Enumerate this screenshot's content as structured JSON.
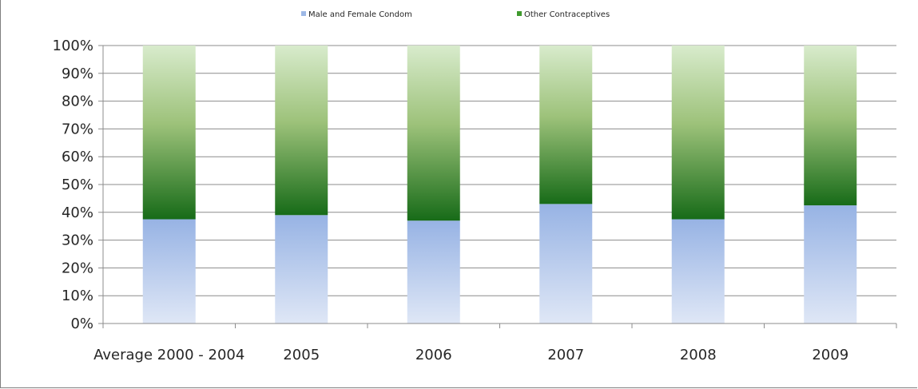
{
  "chart_data": {
    "type": "bar",
    "stacked": true,
    "percent_stacked": true,
    "categories": [
      "Average 2000 - 2004",
      "2005",
      "2006",
      "2007",
      "2008",
      "2009"
    ],
    "series": [
      {
        "name": "Male and Female Condom",
        "color": "#9db8e6",
        "values": [
          37.5,
          39,
          37,
          43,
          37.5,
          42.5
        ]
      },
      {
        "name": "Other Contraceptives",
        "color": "#3f9a2e",
        "values": [
          62.5,
          61,
          63,
          57,
          62.5,
          57.5
        ]
      }
    ],
    "yticks": [
      "0%",
      "10%",
      "20%",
      "30%",
      "40%",
      "50%",
      "60%",
      "70%",
      "80%",
      "90%",
      "100%"
    ],
    "ylim": [
      0,
      100
    ],
    "grid": true,
    "legend": "top-center"
  }
}
